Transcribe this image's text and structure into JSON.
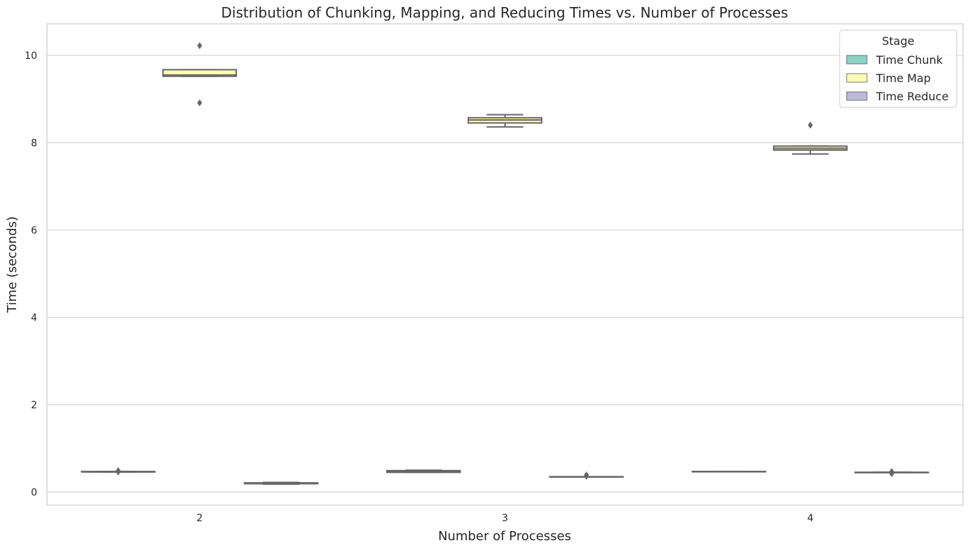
{
  "chart_data": {
    "type": "box",
    "title": "Distribution of Chunking, Mapping, and Reducing Times vs. Number of Processes",
    "xlabel": "Number of Processes",
    "ylabel": "Time (seconds)",
    "categories": [
      "2",
      "3",
      "4"
    ],
    "ylim": [
      -0.3,
      10.72
    ],
    "yticks": [
      0,
      2,
      4,
      6,
      8,
      10
    ],
    "grid": "horizontal",
    "legend": {
      "title": "Stage",
      "position": "top-right"
    },
    "series": [
      {
        "name": "Time Chunk",
        "color": "#8dd3c7",
        "boxes": [
          {
            "whisker_low": 0.46,
            "q1": 0.46,
            "median": 0.46,
            "q3": 0.47,
            "whisker_high": 0.47,
            "outliers": [
              0.49,
              0.46
            ]
          },
          {
            "whisker_low": 0.45,
            "q1": 0.45,
            "median": 0.47,
            "q3": 0.49,
            "whisker_high": 0.5,
            "outliers": []
          },
          {
            "whisker_low": 0.47,
            "q1": 0.47,
            "median": 0.47,
            "q3": 0.47,
            "whisker_high": 0.47,
            "outliers": []
          }
        ]
      },
      {
        "name": "Time Map",
        "color": "#ffffb3",
        "boxes": [
          {
            "whisker_low": 9.52,
            "q1": 9.52,
            "median": 9.55,
            "q3": 9.67,
            "whisker_high": 9.67,
            "outliers": [
              10.22,
              8.91
            ]
          },
          {
            "whisker_low": 8.36,
            "q1": 8.45,
            "median": 8.52,
            "q3": 8.57,
            "whisker_high": 8.64,
            "outliers": []
          },
          {
            "whisker_low": 7.74,
            "q1": 7.83,
            "median": 7.87,
            "q3": 7.92,
            "whisker_high": 7.92,
            "outliers": [
              8.4
            ]
          }
        ]
      },
      {
        "name": "Time Reduce",
        "color": "#bebada",
        "boxes": [
          {
            "whisker_low": 0.18,
            "q1": 0.19,
            "median": 0.2,
            "q3": 0.21,
            "whisker_high": 0.22,
            "outliers": []
          },
          {
            "whisker_low": 0.35,
            "q1": 0.35,
            "median": 0.35,
            "q3": 0.35,
            "whisker_high": 0.35,
            "outliers": [
              0.39,
              0.36
            ]
          },
          {
            "whisker_low": 0.45,
            "q1": 0.45,
            "median": 0.45,
            "q3": 0.45,
            "whisker_high": 0.45,
            "outliers": [
              0.47,
              0.42
            ]
          }
        ]
      }
    ]
  }
}
